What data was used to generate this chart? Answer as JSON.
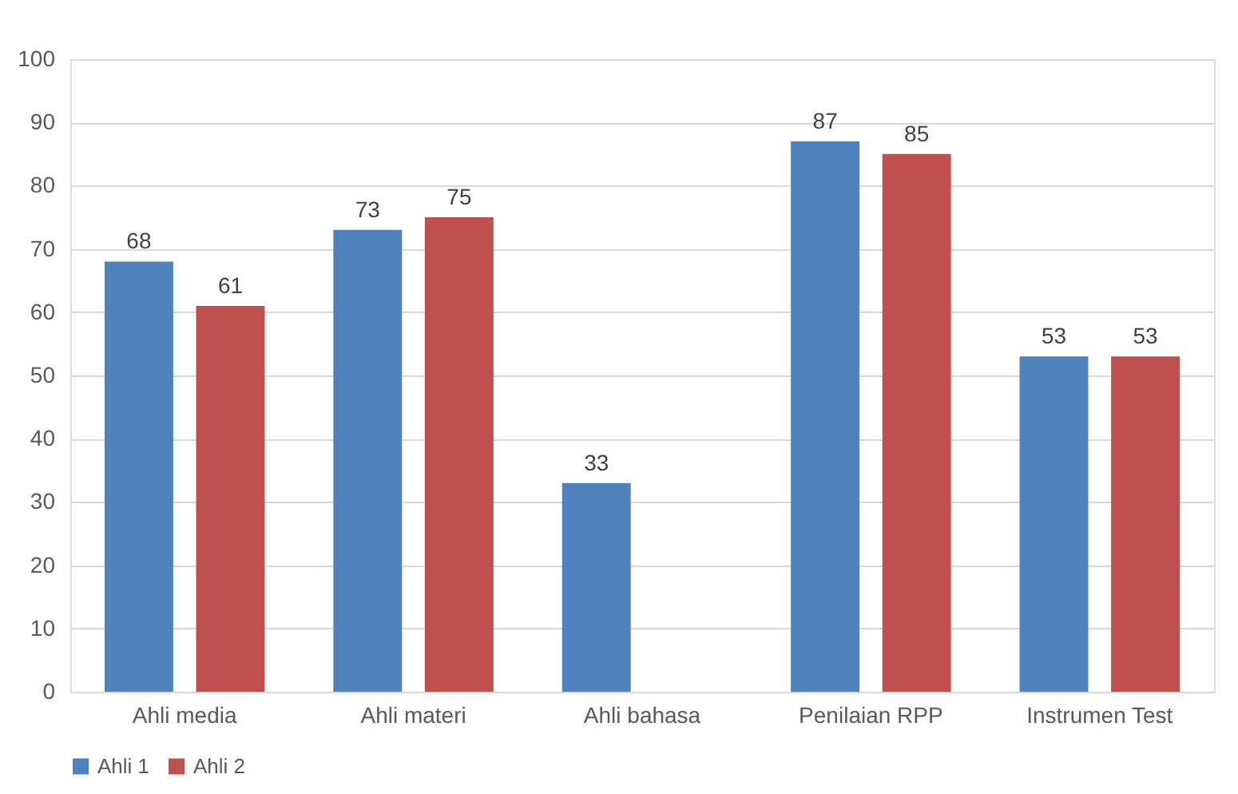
{
  "chart_data": {
    "type": "bar",
    "categories": [
      "Ahli media",
      "Ahli materi",
      "Ahli bahasa",
      "Penilaian RPP",
      "Instrumen Test"
    ],
    "series": [
      {
        "name": "Ahli 1",
        "color": "#4f81bd",
        "values": [
          68,
          73,
          33,
          87,
          53
        ]
      },
      {
        "name": "Ahli 2",
        "color": "#c0504d",
        "values": [
          61,
          75,
          null,
          85,
          53
        ]
      }
    ],
    "ylim": [
      0,
      100
    ],
    "yticks": [
      0,
      10,
      20,
      30,
      40,
      50,
      60,
      70,
      80,
      90,
      100
    ],
    "grid": "y",
    "legend": "bottom",
    "data_labels": true
  }
}
